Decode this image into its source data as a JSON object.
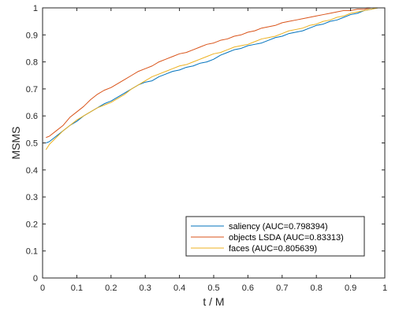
{
  "chart_data": {
    "type": "line",
    "title": "",
    "xlabel": "t / M",
    "ylabel": "MSMS",
    "xlim": [
      0,
      1
    ],
    "ylim": [
      0,
      1
    ],
    "x_ticks": [
      "0",
      "0.1",
      "0.2",
      "0.3",
      "0.4",
      "0.5",
      "0.6",
      "0.7",
      "0.8",
      "0.9",
      "1"
    ],
    "y_ticks": [
      "0",
      "0.1",
      "0.2",
      "0.3",
      "0.4",
      "0.5",
      "0.6",
      "0.7",
      "0.8",
      "0.9",
      "1"
    ],
    "grid": false,
    "legend_position": "lower-right",
    "x": [
      0.01,
      0.02,
      0.04,
      0.06,
      0.08,
      0.1,
      0.12,
      0.14,
      0.16,
      0.18,
      0.2,
      0.22,
      0.24,
      0.26,
      0.28,
      0.3,
      0.32,
      0.34,
      0.36,
      0.38,
      0.4,
      0.42,
      0.44,
      0.46,
      0.48,
      0.5,
      0.52,
      0.54,
      0.56,
      0.58,
      0.6,
      0.62,
      0.64,
      0.66,
      0.68,
      0.7,
      0.72,
      0.74,
      0.76,
      0.78,
      0.8,
      0.82,
      0.84,
      0.86,
      0.88,
      0.9,
      0.92,
      0.94,
      0.96,
      0.98,
      1.0
    ],
    "series": [
      {
        "name": "saliency (AUC=0.798394)",
        "color": "#0072BD",
        "values": [
          0.5,
          0.505,
          0.525,
          0.545,
          0.565,
          0.58,
          0.6,
          0.615,
          0.63,
          0.645,
          0.655,
          0.67,
          0.685,
          0.7,
          0.715,
          0.725,
          0.73,
          0.745,
          0.755,
          0.765,
          0.77,
          0.78,
          0.785,
          0.795,
          0.8,
          0.81,
          0.825,
          0.835,
          0.845,
          0.85,
          0.86,
          0.865,
          0.87,
          0.88,
          0.89,
          0.895,
          0.905,
          0.91,
          0.915,
          0.925,
          0.935,
          0.94,
          0.95,
          0.955,
          0.965,
          0.975,
          0.98,
          0.99,
          0.995,
          1.0,
          1.0
        ]
      },
      {
        "name": "objects LSDA (AUC=0.83313)",
        "color": "#D95319",
        "values": [
          0.52,
          0.525,
          0.545,
          0.565,
          0.595,
          0.615,
          0.635,
          0.66,
          0.68,
          0.695,
          0.705,
          0.72,
          0.735,
          0.75,
          0.765,
          0.775,
          0.785,
          0.8,
          0.81,
          0.82,
          0.83,
          0.835,
          0.845,
          0.855,
          0.865,
          0.87,
          0.88,
          0.885,
          0.895,
          0.9,
          0.91,
          0.915,
          0.925,
          0.93,
          0.935,
          0.945,
          0.95,
          0.955,
          0.96,
          0.965,
          0.97,
          0.975,
          0.98,
          0.985,
          0.99,
          0.99,
          0.995,
          0.995,
          1.0,
          1.0,
          1.0
        ]
      },
      {
        "name": "faces (AUC=0.805639)",
        "color": "#EDB120",
        "values": [
          0.475,
          0.495,
          0.52,
          0.545,
          0.565,
          0.585,
          0.6,
          0.615,
          0.63,
          0.64,
          0.65,
          0.665,
          0.68,
          0.7,
          0.715,
          0.73,
          0.745,
          0.755,
          0.765,
          0.775,
          0.785,
          0.79,
          0.8,
          0.81,
          0.82,
          0.83,
          0.835,
          0.845,
          0.855,
          0.86,
          0.865,
          0.875,
          0.885,
          0.89,
          0.895,
          0.905,
          0.915,
          0.92,
          0.925,
          0.935,
          0.94,
          0.95,
          0.955,
          0.965,
          0.97,
          0.98,
          0.985,
          0.99,
          0.995,
          1.0,
          1.0
        ]
      }
    ]
  }
}
